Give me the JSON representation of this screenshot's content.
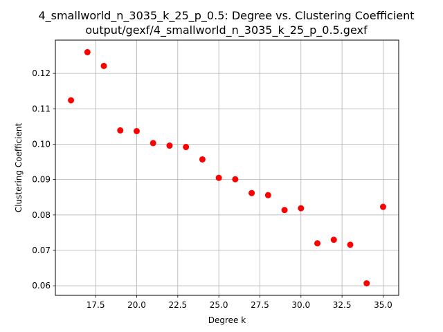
{
  "chart_data": {
    "type": "scatter",
    "title": "4_smallworld_n_3035_k_25_p_0.5: Degree vs. Clustering Coefficient",
    "subtitle": "output/gexf/4_smallworld_n_3035_k_25_p_0.5.gexf",
    "xlabel": "Degree k",
    "ylabel": "Clustering Coefficient",
    "xlim": [
      15.05,
      35.95
    ],
    "ylim": [
      0.0573,
      0.1294
    ],
    "xticks": [
      17.5,
      20.0,
      22.5,
      25.0,
      27.5,
      30.0,
      32.5,
      35.0
    ],
    "xtick_labels": [
      "17.5",
      "20.0",
      "22.5",
      "25.0",
      "27.5",
      "30.0",
      "32.5",
      "35.0"
    ],
    "yticks": [
      0.06,
      0.07,
      0.08,
      0.09,
      0.1,
      0.11,
      0.12
    ],
    "ytick_labels": [
      "0.06",
      "0.07",
      "0.08",
      "0.09",
      "0.10",
      "0.11",
      "0.12"
    ],
    "grid": true,
    "marker_color": "#ff0000",
    "points": [
      {
        "x": 16,
        "y": 0.1124
      },
      {
        "x": 17,
        "y": 0.126
      },
      {
        "x": 18,
        "y": 0.1221
      },
      {
        "x": 19,
        "y": 0.1039
      },
      {
        "x": 20,
        "y": 0.1037
      },
      {
        "x": 21,
        "y": 0.1003
      },
      {
        "x": 22,
        "y": 0.0996
      },
      {
        "x": 23,
        "y": 0.0992
      },
      {
        "x": 24,
        "y": 0.0957
      },
      {
        "x": 25,
        "y": 0.0905
      },
      {
        "x": 26,
        "y": 0.0901
      },
      {
        "x": 27,
        "y": 0.0862
      },
      {
        "x": 28,
        "y": 0.0856
      },
      {
        "x": 29,
        "y": 0.0814
      },
      {
        "x": 30,
        "y": 0.0819
      },
      {
        "x": 31,
        "y": 0.072
      },
      {
        "x": 32,
        "y": 0.073
      },
      {
        "x": 33,
        "y": 0.0716
      },
      {
        "x": 34,
        "y": 0.0607
      },
      {
        "x": 35,
        "y": 0.0823
      }
    ]
  }
}
